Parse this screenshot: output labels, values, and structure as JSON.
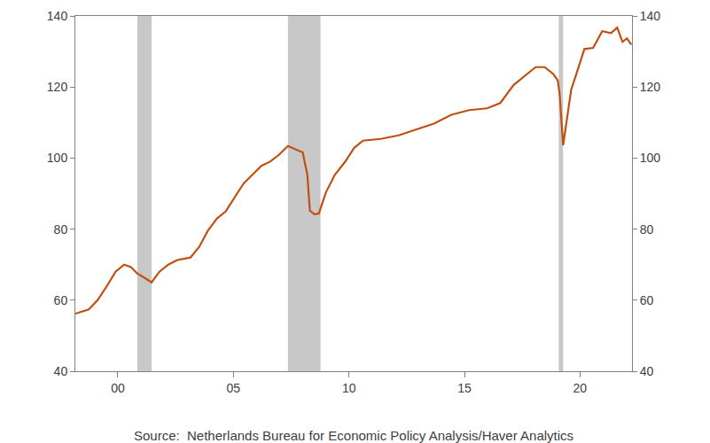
{
  "chart_data": {
    "type": "line",
    "source": "Source:  Netherlands Bureau for Economic Policy Analysis/Haver Analytics",
    "color": "#c0500f",
    "x": [
      1998.16,
      1998.74,
      1999.12,
      1999.5,
      1999.9,
      2000.27,
      2000.57,
      2000.84,
      2001.23,
      2001.46,
      2001.8,
      2002.18,
      2002.57,
      2003.14,
      2003.52,
      2003.9,
      2004.29,
      2004.67,
      2005.06,
      2005.44,
      2005.82,
      2006.21,
      2006.59,
      2006.97,
      2007.36,
      2007.74,
      2008.0,
      2008.2,
      2008.31,
      2008.51,
      2008.7,
      2009.0,
      2009.39,
      2009.85,
      2010.23,
      2010.61,
      2011.38,
      2012.15,
      2012.91,
      2013.68,
      2014.44,
      2015.21,
      2015.98,
      2016.55,
      2017.13,
      2017.7,
      2018.08,
      2018.47,
      2018.85,
      2019.04,
      2019.12,
      2019.27,
      2019.43,
      2019.62,
      2019.81,
      2020.19,
      2020.57,
      2020.96,
      2021.34,
      2021.61,
      2021.84,
      2022.03,
      2022.22
    ],
    "values": [
      56.2,
      57.4,
      60,
      63.7,
      68,
      70,
      69.3,
      67.5,
      66,
      65,
      68,
      70,
      71.3,
      72,
      75,
      79.6,
      83,
      85,
      89,
      92.8,
      95.3,
      97.8,
      99,
      100.9,
      103.4,
      102.4,
      101.6,
      95.3,
      85.2,
      84.2,
      84.4,
      90.3,
      95.3,
      99.1,
      102.9,
      104.9,
      105.4,
      106.4,
      108,
      109.7,
      112.2,
      113.5,
      114,
      115.5,
      120.6,
      123.6,
      125.6,
      125.6,
      123.6,
      121.8,
      118,
      103.6,
      110.5,
      119.3,
      123,
      130.7,
      131,
      135.7,
      135.2,
      136.7,
      132.7,
      133.7,
      131.9
    ],
    "shaded_periods": [
      [
        2000.84,
        2001.46
      ],
      [
        2007.36,
        2008.77
      ],
      [
        2019.08,
        2019.27
      ]
    ],
    "xlim": [
      1998.16,
      2022.25
    ],
    "xticks": [
      {
        "value": 2000,
        "label": "00"
      },
      {
        "value": 2005,
        "label": "05"
      },
      {
        "value": 2010,
        "label": "10"
      },
      {
        "value": 2015,
        "label": "15"
      },
      {
        "value": 2020,
        "label": "20"
      }
    ],
    "ylim": [
      40,
      140
    ],
    "yticks": [
      40,
      60,
      80,
      100,
      120,
      140
    ],
    "y2lim": [
      40,
      140
    ],
    "y2ticks": [
      40,
      60,
      80,
      100,
      120,
      140
    ],
    "grid": false
  }
}
